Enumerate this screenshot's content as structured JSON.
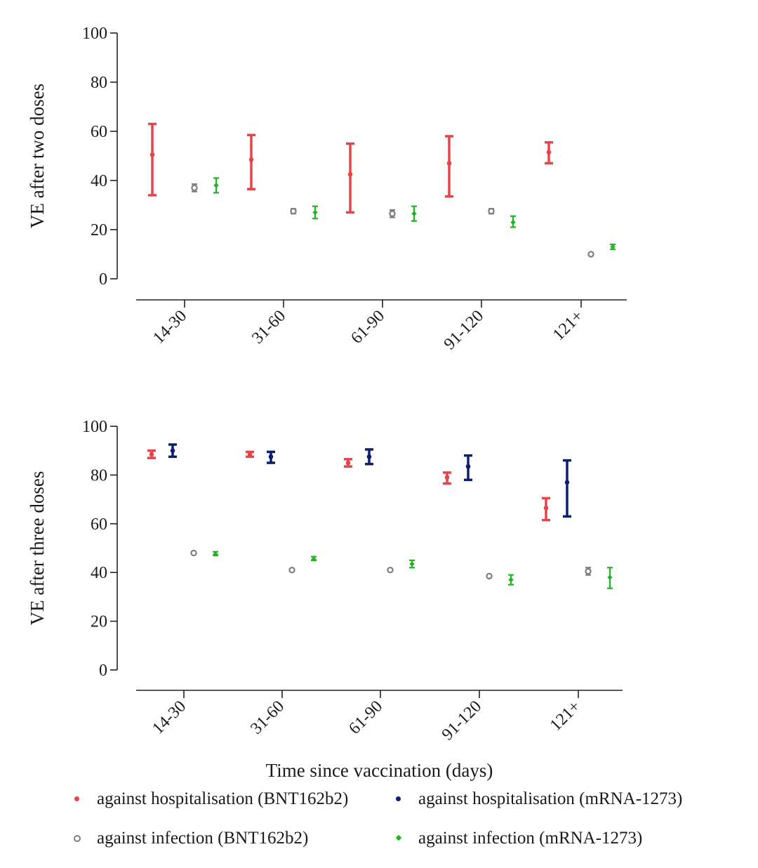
{
  "chart_data": [
    {
      "type": "scatter",
      "ylabel": "VE after two doses",
      "ylim": [
        0,
        100
      ],
      "yticks": [
        "0",
        "20",
        "40",
        "60",
        "80",
        "100"
      ],
      "categories": [
        "14-30",
        "31-60",
        "61-90",
        "91-120",
        "121+"
      ],
      "series": [
        {
          "name": "against hospitalisation (BNT162b2)",
          "color": "#e3454b",
          "marker": "dot",
          "points": [
            {
              "category": "14-30",
              "value": 50.5,
              "low": 34,
              "high": 63
            },
            {
              "category": "31-60",
              "value": 48.5,
              "low": 36.5,
              "high": 58.5
            },
            {
              "category": "61-90",
              "value": 42.5,
              "low": 27,
              "high": 55
            },
            {
              "category": "91-120",
              "value": 47,
              "low": 33.5,
              "high": 58
            },
            {
              "category": "121+",
              "value": 51.5,
              "low": 47,
              "high": 55.5
            }
          ]
        },
        {
          "name": "against infection (BNT162b2)",
          "color": "#7f7f7f",
          "marker": "ring",
          "points": [
            {
              "category": "14-30",
              "value": 37,
              "low": 35.5,
              "high": 38.5
            },
            {
              "category": "31-60",
              "value": 27.5,
              "low": 26.5,
              "high": 28.5
            },
            {
              "category": "61-90",
              "value": 26.5,
              "low": 25,
              "high": 28
            },
            {
              "category": "91-120",
              "value": 27.5,
              "low": 26.5,
              "high": 28.5
            },
            {
              "category": "121+",
              "value": 10,
              "low": 10,
              "high": 10
            }
          ]
        },
        {
          "name": "against infection (mRNA-1273)",
          "color": "#21b321",
          "marker": "diamond",
          "points": [
            {
              "category": "14-30",
              "value": 38,
              "low": 35,
              "high": 41
            },
            {
              "category": "31-60",
              "value": 27,
              "low": 24.5,
              "high": 29.5
            },
            {
              "category": "61-90",
              "value": 26.5,
              "low": 23.5,
              "high": 29.5
            },
            {
              "category": "91-120",
              "value": 23,
              "low": 21,
              "high": 25.5
            },
            {
              "category": "121+",
              "value": 13,
              "low": 12,
              "high": 14
            }
          ]
        }
      ]
    },
    {
      "type": "scatter",
      "ylabel": "VE after three doses",
      "xlabel": "Time since vaccination (days)",
      "ylim": [
        0,
        100
      ],
      "yticks": [
        "0",
        "20",
        "40",
        "60",
        "80",
        "100"
      ],
      "categories": [
        "14-30",
        "31-60",
        "61-90",
        "91-120",
        "121+"
      ],
      "series": [
        {
          "name": "against hospitalisation (BNT162b2)",
          "color": "#e3454b",
          "marker": "dot",
          "points": [
            {
              "category": "14-30",
              "value": 88.5,
              "low": 87,
              "high": 90
            },
            {
              "category": "31-60",
              "value": 88.5,
              "low": 87.5,
              "high": 89.5
            },
            {
              "category": "61-90",
              "value": 85,
              "low": 83.5,
              "high": 86.5
            },
            {
              "category": "91-120",
              "value": 79,
              "low": 76.5,
              "high": 81
            },
            {
              "category": "121+",
              "value": 66.5,
              "low": 61.5,
              "high": 70.5
            }
          ]
        },
        {
          "name": "against hospitalisation (mRNA-1273)",
          "color": "#0a1f6e",
          "marker": "dot",
          "points": [
            {
              "category": "14-30",
              "value": 90,
              "low": 87.5,
              "high": 92.5
            },
            {
              "category": "31-60",
              "value": 87.5,
              "low": 85,
              "high": 89.5
            },
            {
              "category": "61-90",
              "value": 87.5,
              "low": 84.5,
              "high": 90.5
            },
            {
              "category": "91-120",
              "value": 83.5,
              "low": 78,
              "high": 88
            },
            {
              "category": "121+",
              "value": 77,
              "low": 63,
              "high": 86
            }
          ]
        },
        {
          "name": "against infection (BNT162b2)",
          "color": "#7f7f7f",
          "marker": "ring",
          "points": [
            {
              "category": "14-30",
              "value": 48,
              "low": 48,
              "high": 48
            },
            {
              "category": "31-60",
              "value": 41,
              "low": 41,
              "high": 41
            },
            {
              "category": "61-90",
              "value": 41,
              "low": 41,
              "high": 41
            },
            {
              "category": "91-120",
              "value": 38.5,
              "low": 38,
              "high": 39
            },
            {
              "category": "121+",
              "value": 40.5,
              "low": 39,
              "high": 42
            }
          ]
        },
        {
          "name": "against infection (mRNA-1273)",
          "color": "#21b321",
          "marker": "diamond",
          "points": [
            {
              "category": "14-30",
              "value": 47.5,
              "low": 47,
              "high": 48.5
            },
            {
              "category": "31-60",
              "value": 45.5,
              "low": 45,
              "high": 46.5
            },
            {
              "category": "61-90",
              "value": 43.5,
              "low": 42,
              "high": 45
            },
            {
              "category": "91-120",
              "value": 37,
              "low": 35,
              "high": 39
            },
            {
              "category": "121+",
              "value": 38,
              "low": 33.5,
              "high": 42
            }
          ]
        }
      ]
    }
  ],
  "legend": {
    "placement": "bottom",
    "items": [
      {
        "label": "against hospitalisation (BNT162b2)",
        "marker": "dot",
        "color": "#e3454b"
      },
      {
        "label": "against hospitalisation (mRNA-1273)",
        "marker": "dot",
        "color": "#0a1f6e"
      },
      {
        "label": "against infection (BNT162b2)",
        "marker": "ring",
        "color": "#7f7f7f"
      },
      {
        "label": "against infection (mRNA-1273)",
        "marker": "diamond",
        "color": "#21b321"
      }
    ]
  }
}
